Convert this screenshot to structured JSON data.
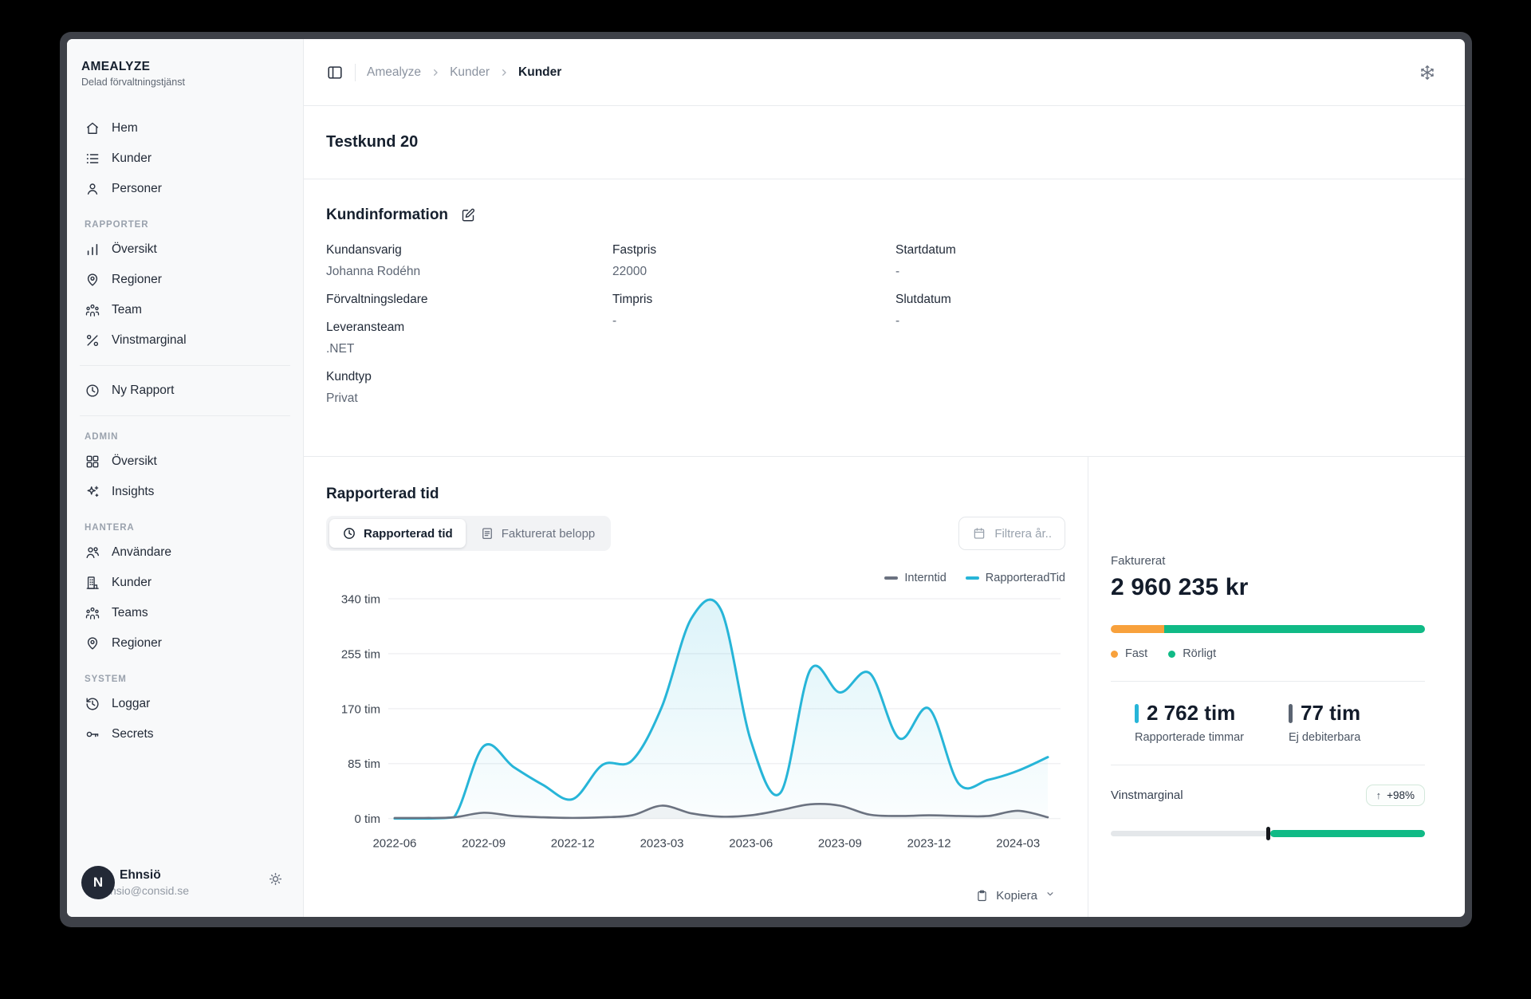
{
  "topbar": {
    "breadcrumb": [
      "Amealyze",
      "Kunder",
      "Kunder"
    ]
  },
  "page": {
    "title": "Testkund 20"
  },
  "sidebar": {
    "brand_title": "AMEALYZE",
    "brand_subtitle": "Delad förvaltningstjänst",
    "main_items": [
      {
        "icon": "home",
        "label": "Hem"
      },
      {
        "icon": "list",
        "label": "Kunder"
      },
      {
        "icon": "user",
        "label": "Personer"
      }
    ],
    "groups": [
      {
        "title": "RAPPORTER",
        "items": [
          {
            "icon": "bar-chart",
            "label": "Översikt"
          },
          {
            "icon": "map-pin",
            "label": "Regioner"
          },
          {
            "icon": "team",
            "label": "Team"
          },
          {
            "icon": "percent",
            "label": "Vinstmarginal"
          }
        ]
      },
      {
        "title": "ADMIN",
        "items": [
          {
            "icon": "grid",
            "label": "Översikt"
          },
          {
            "icon": "sparkles",
            "label": "Insights"
          }
        ]
      },
      {
        "title": "HANTERA",
        "items": [
          {
            "icon": "users",
            "label": "Användare"
          },
          {
            "icon": "building",
            "label": "Kunder"
          },
          {
            "icon": "team",
            "label": "Teams"
          },
          {
            "icon": "map-pin",
            "label": "Regioner"
          }
        ]
      },
      {
        "title": "SYSTEM",
        "items": [
          {
            "icon": "history",
            "label": "Loggar"
          },
          {
            "icon": "key",
            "label": "Secrets"
          }
        ]
      }
    ],
    "shortcut": {
      "icon": "clock",
      "label": "Ny Rapport"
    },
    "user": {
      "avatar_initial": "N",
      "name": "Ehnsiö",
      "email": "nsio@consid.se"
    }
  },
  "kundinformation": {
    "heading": "Kundinformation",
    "columns": [
      {
        "pairs": [
          {
            "label": "Kundansvarig",
            "value": "Johanna Rodéhn"
          },
          {
            "label": "Förvaltningsledare",
            "value": ""
          },
          {
            "label": "Leveransteam",
            "value": ".NET"
          },
          {
            "label": "Kundtyp",
            "value": "Privat"
          }
        ]
      },
      {
        "pairs": [
          {
            "label": "Fastpris",
            "value": "22000"
          },
          {
            "label": "Timpris",
            "value": "-"
          }
        ]
      },
      {
        "pairs": [
          {
            "label": "Startdatum",
            "value": "-"
          },
          {
            "label": "Slutdatum",
            "value": "-"
          }
        ]
      }
    ]
  },
  "report": {
    "heading": "Rapporterad tid",
    "tabs": [
      {
        "label": "Rapporterad tid"
      },
      {
        "label": "Fakturerat belopp"
      }
    ],
    "active_tab": 0,
    "filter_button": "Filtrera år..",
    "copy_button": "Kopiera"
  },
  "chart_data": {
    "type": "line",
    "title": "Rapporterad tid",
    "x": [
      "2022-06",
      "2022-07",
      "2022-08",
      "2022-09",
      "2022-10",
      "2022-11",
      "2022-12",
      "2023-01",
      "2023-02",
      "2023-03",
      "2023-04",
      "2023-05",
      "2023-06",
      "2023-07",
      "2023-08",
      "2023-09",
      "2023-10",
      "2023-11",
      "2023-12",
      "2024-01",
      "2024-02",
      "2024-03",
      "2024-04"
    ],
    "x_tick_labels": [
      "2022-06",
      "2022-09",
      "2022-12",
      "2023-03",
      "2023-06",
      "2023-09",
      "2023-12",
      "2024-03"
    ],
    "y_ticks": [
      0,
      85,
      170,
      255,
      340
    ],
    "y_tick_suffix": " tim",
    "ylim": [
      0,
      340
    ],
    "grid": true,
    "legend_position": "top-right",
    "series": [
      {
        "name": "Interntid",
        "color": "#6b7280",
        "values": [
          1,
          1,
          2,
          9,
          4,
          2,
          1,
          2,
          5,
          20,
          8,
          3,
          5,
          13,
          22,
          20,
          6,
          4,
          5,
          4,
          4,
          12,
          2
        ]
      },
      {
        "name": "RapporteradTid",
        "color": "#27b5d8",
        "values": [
          0,
          0,
          2,
          112,
          80,
          52,
          30,
          83,
          90,
          173,
          310,
          322,
          120,
          40,
          230,
          195,
          225,
          124,
          170,
          54,
          60,
          74,
          95
        ]
      }
    ]
  },
  "billing": {
    "label": "Fakturerat",
    "value": "2 960 235 kr",
    "split": {
      "fast_pct": 17,
      "fast_color": "#f8a13c",
      "rorligt_color": "#10ba86"
    },
    "legend": [
      {
        "label": "Fast",
        "color": "#f8a13c"
      },
      {
        "label": "Rörligt",
        "color": "#10ba86"
      }
    ],
    "stats": [
      {
        "value": "2 762 tim",
        "label": "Rapporterade timmar",
        "accent": "#27b5d8"
      },
      {
        "value": "77 tim",
        "label": "Ej debiterbara",
        "accent": "#5b6472"
      }
    ],
    "vinstmarginal": {
      "label": "Vinstmarginal",
      "arrow": "↑",
      "badge": "+98%",
      "slider_pct": 50
    }
  }
}
